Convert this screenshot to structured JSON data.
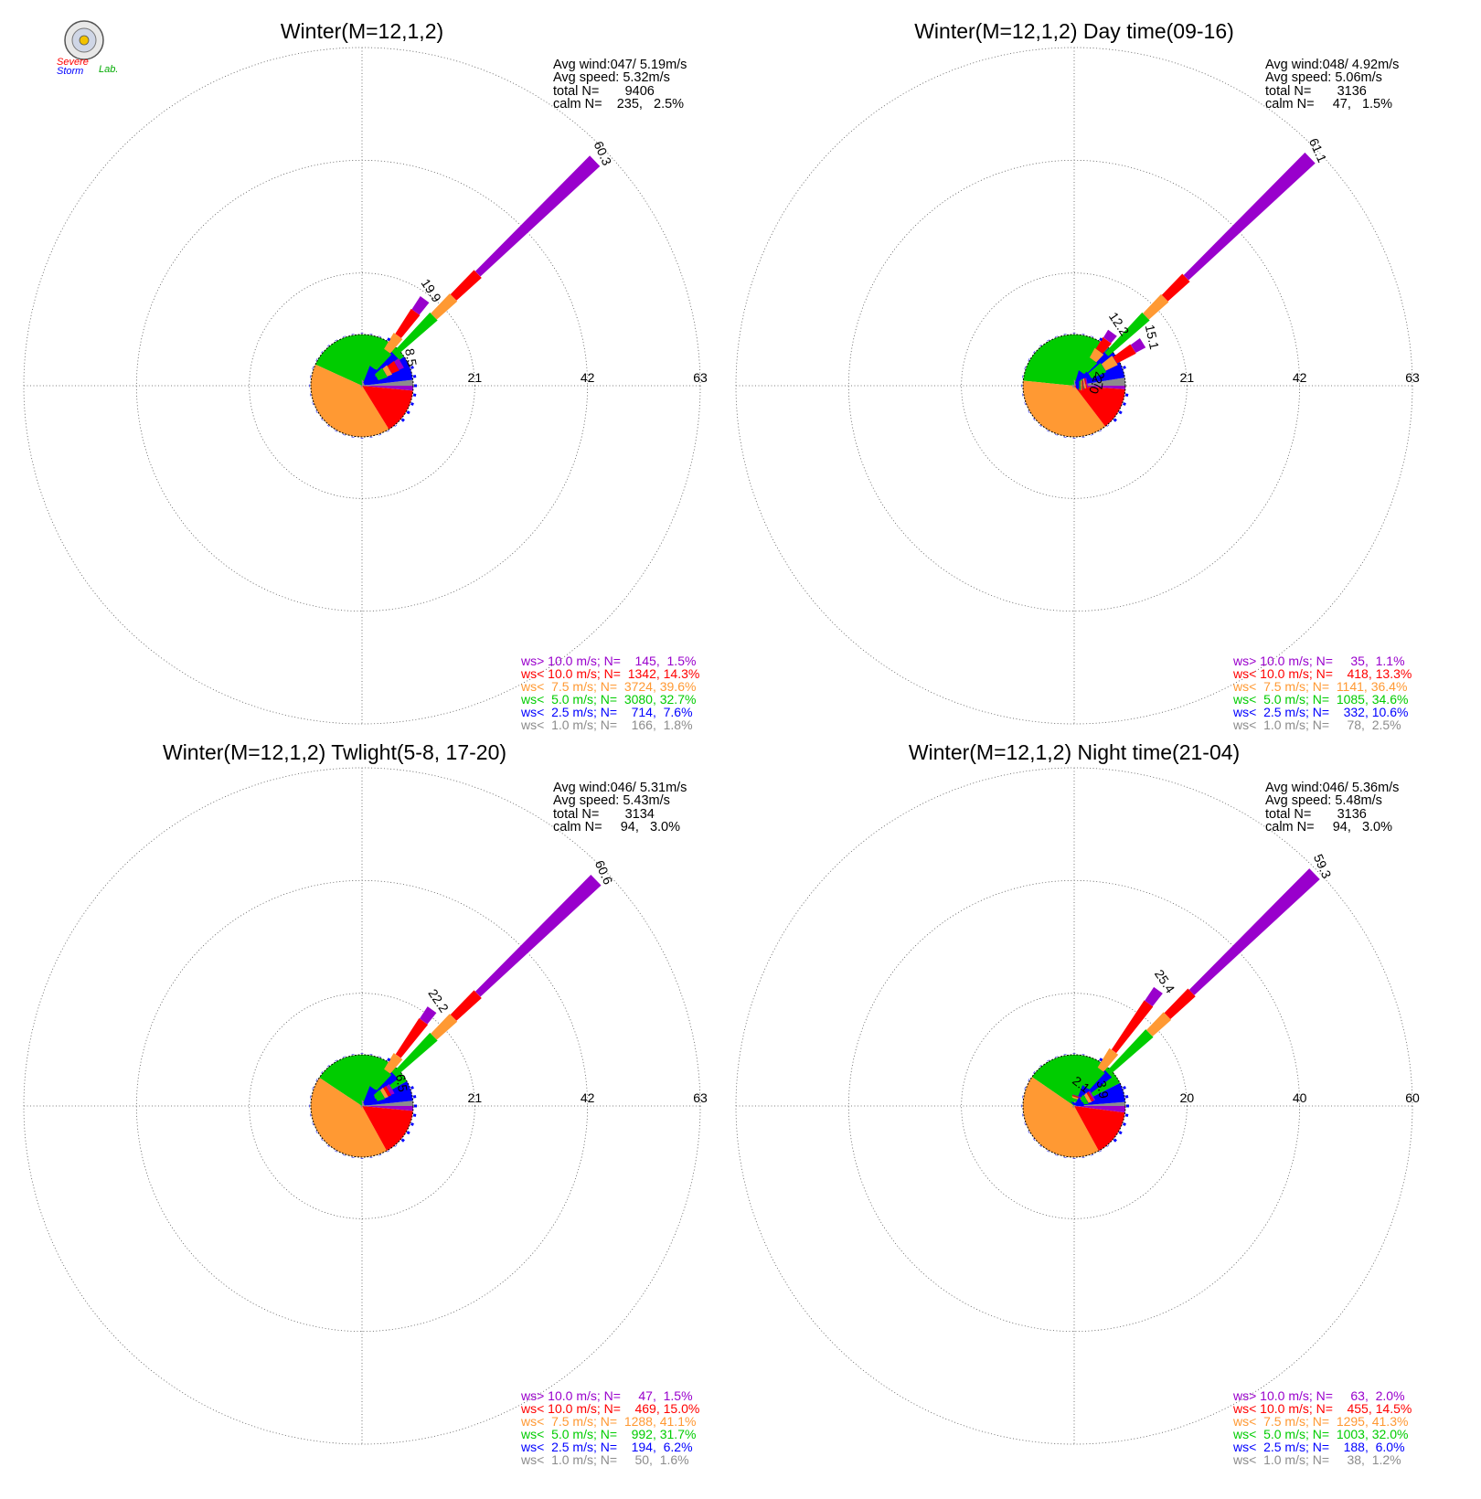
{
  "logo": {
    "word1": "Severe",
    "word2": "Storm",
    "word3": "Lab."
  },
  "legend_colors": {
    "ws_gt_10": "#9900cc",
    "ws_lt_10": "#ff0000",
    "ws_lt_7_5": "#ff9933",
    "ws_lt_5": "#00cc00",
    "ws_lt_2_5": "#0000ff",
    "ws_lt_1": "#8c8c8c"
  },
  "chart_data": [
    {
      "type": "wind-rose",
      "title": "Winter(M=12,1,2)",
      "stats": {
        "avg_wind": "Avg wind:047/ 5.19m/s",
        "avg_speed": "Avg speed: 5.32m/s",
        "total": "total N=       9406",
        "calm": "calm N=    235,   2.5%"
      },
      "ring_values": [
        "21",
        "42",
        "63"
      ],
      "r_max": 63,
      "peaks": [
        {
          "dir": 46,
          "total": 60.3,
          "label": "60.3",
          "bands": [
            1.2,
            8.4,
            18.6,
            23.7,
            30.0,
            60.3
          ]
        },
        {
          "dir": 36,
          "total": 19.9,
          "label": "19.9",
          "bands": [
            0.6,
            4.0,
            8.0,
            11.5,
            17.0,
            19.9
          ]
        },
        {
          "dir": 60,
          "total": 8.5,
          "label": "8.5",
          "bands": [
            0.5,
            3.2,
            5.0,
            6.0,
            7.5,
            8.5
          ]
        }
      ],
      "pie": {
        "gray": 1.8,
        "blue": 7.6,
        "green": 32.7,
        "orange": 39.6,
        "red": 14.3,
        "purple": 1.5
      },
      "legend": [
        {
          "text": "ws> 10.0 m/s; N=    145,  1.5%"
        },
        {
          "text": "ws< 10.0 m/s; N=  1342, 14.3%"
        },
        {
          "text": "ws<  7.5 m/s; N=  3724, 39.6%"
        },
        {
          "text": "ws<  5.0 m/s; N=  3080, 32.7%"
        },
        {
          "text": "ws<  2.5 m/s; N=    714,  7.6%"
        },
        {
          "text": "ws<  1.0 m/s; N=    166,  1.8%"
        }
      ]
    },
    {
      "type": "wind-rose",
      "title": "Winter(M=12,1,2) Day time(09-16)",
      "stats": {
        "avg_wind": "Avg wind:048/ 4.92m/s",
        "avg_speed": "Avg speed: 5.06m/s",
        "total": "total N=       3136",
        "calm": "calm N=     47,   1.5%"
      },
      "ring_values": [
        "21",
        "42",
        "63"
      ],
      "r_max": 63,
      "peaks": [
        {
          "dir": 46,
          "total": 61.1,
          "label": "61.1",
          "bands": [
            1.2,
            8.4,
            18.6,
            23.5,
            29.0,
            61.1
          ]
        },
        {
          "dir": 36,
          "total": 12.2,
          "label": "12.2",
          "bands": [
            0.5,
            3.0,
            6.0,
            8.0,
            10.5,
            12.2
          ]
        },
        {
          "dir": 58,
          "total": 15.1,
          "label": "15.1",
          "bands": [
            0.5,
            3.5,
            6.5,
            9.0,
            13.0,
            15.1
          ]
        },
        {
          "dir": 78,
          "total": 2.7,
          "label": "2.7",
          "bands": [
            0.4,
            1.5,
            2.0,
            2.3,
            2.5,
            2.7
          ]
        },
        {
          "dir": 88,
          "total": 2.0,
          "label": "2.0",
          "bands": [
            0.5,
            1.2,
            1.5,
            1.7,
            1.9,
            2.0
          ]
        }
      ],
      "pie": {
        "gray": 2.5,
        "blue": 10.6,
        "green": 34.6,
        "orange": 36.4,
        "red": 13.3,
        "purple": 1.1
      },
      "legend": [
        {
          "text": "ws> 10.0 m/s; N=     35,  1.1%"
        },
        {
          "text": "ws< 10.0 m/s; N=    418, 13.3%"
        },
        {
          "text": "ws<  7.5 m/s; N=  1141, 36.4%"
        },
        {
          "text": "ws<  5.0 m/s; N=  1085, 34.6%"
        },
        {
          "text": "ws<  2.5 m/s; N=    332, 10.6%"
        },
        {
          "text": "ws<  1.0 m/s; N=     78,  2.5%"
        }
      ]
    },
    {
      "type": "wind-rose",
      "title": "Winter(M=12,1,2) Twlight(5-8, 17-20)",
      "stats": {
        "avg_wind": "Avg wind:046/ 5.31m/s",
        "avg_speed": "Avg speed: 5.43m/s",
        "total": "total N=       3134",
        "calm": "calm N=     94,   3.0%"
      },
      "ring_values": [
        "21",
        "42",
        "63"
      ],
      "r_max": 63,
      "peaks": [
        {
          "dir": 46,
          "total": 60.6,
          "label": "60.6",
          "bands": [
            1.2,
            8.4,
            18.6,
            23.7,
            30.0,
            60.6
          ]
        },
        {
          "dir": 36,
          "total": 22.2,
          "label": "22.2",
          "bands": [
            0.6,
            4.0,
            8.0,
            11.5,
            19.5,
            22.2
          ]
        },
        {
          "dir": 60,
          "total": 6.5,
          "label": "6.5",
          "bands": [
            0.5,
            3.0,
            4.5,
            5.2,
            5.8,
            6.5
          ]
        }
      ],
      "pie": {
        "gray": 1.6,
        "blue": 6.2,
        "green": 31.7,
        "orange": 41.1,
        "red": 15.0,
        "purple": 1.5
      },
      "legend": [
        {
          "text": "ws> 10.0 m/s; N=     47,  1.5%"
        },
        {
          "text": "ws< 10.0 m/s; N=    469, 15.0%"
        },
        {
          "text": "ws<  7.5 m/s; N=  1288, 41.1%"
        },
        {
          "text": "ws<  5.0 m/s; N=    992, 31.7%"
        },
        {
          "text": "ws<  2.5 m/s; N=    194,  6.2%"
        },
        {
          "text": "ws<  1.0 m/s; N=     50,  1.6%"
        }
      ]
    },
    {
      "type": "wind-rose",
      "title": "Winter(M=12,1,2) Night time(21-04)",
      "stats": {
        "avg_wind": "Avg wind:046/ 5.36m/s",
        "avg_speed": "Avg speed: 5.48m/s",
        "total": "total N=       3136",
        "calm": "calm N=     94,   3.0%"
      },
      "ring_values": [
        "20",
        "40",
        "60"
      ],
      "r_max": 60,
      "peaks": [
        {
          "dir": 46,
          "total": 59.3,
          "label": "59.3",
          "bands": [
            1.2,
            8.4,
            18.6,
            23.0,
            29.0,
            59.3
          ]
        },
        {
          "dir": 36,
          "total": 25.4,
          "label": "25.4",
          "bands": [
            0.6,
            4.0,
            8.0,
            12.0,
            22.5,
            25.4
          ]
        },
        {
          "dir": 18,
          "total": 2.1,
          "label": "2.1",
          "bands": [
            0.3,
            1.0,
            1.5,
            1.8,
            2.0,
            2.1
          ]
        },
        {
          "dir": 60,
          "total": 3.9,
          "label": "3.9",
          "bands": [
            0.4,
            1.8,
            2.6,
            3.2,
            3.6,
            3.9
          ]
        }
      ],
      "pie": {
        "gray": 1.2,
        "blue": 6.0,
        "green": 32.0,
        "orange": 41.3,
        "red": 14.5,
        "purple": 2.0
      },
      "legend": [
        {
          "text": "ws> 10.0 m/s; N=     63,  2.0%"
        },
        {
          "text": "ws< 10.0 m/s; N=    455, 14.5%"
        },
        {
          "text": "ws<  7.5 m/s; N=  1295, 41.3%"
        },
        {
          "text": "ws<  5.0 m/s; N=  1003, 32.0%"
        },
        {
          "text": "ws<  2.5 m/s; N=    188,  6.0%"
        },
        {
          "text": "ws<  1.0 m/s; N=     38,  1.2%"
        }
      ]
    }
  ]
}
